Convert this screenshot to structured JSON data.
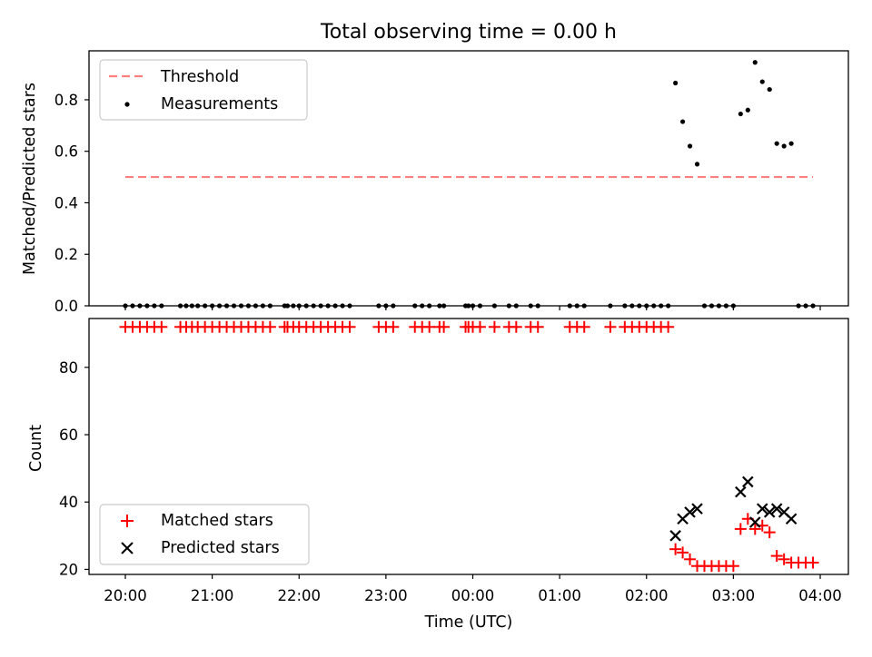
{
  "figure": {
    "title": "Total observing time = 0.00 h"
  },
  "colors": {
    "threshold": "#ff7f7f",
    "measurement": "#000000",
    "matched": "#ff0000",
    "predicted": "#000000"
  },
  "chart_data": [
    {
      "type": "scatter",
      "panel": "top",
      "xlabel": "",
      "ylabel": "Matched/Predicted stars",
      "ylim": [
        0.0,
        0.99
      ],
      "yticks": [
        "0.0",
        "0.2",
        "0.4",
        "0.6",
        "0.8"
      ],
      "threshold": {
        "name": "Threshold",
        "value": 0.5,
        "x_start": "20:00",
        "x_end": "03:55"
      },
      "legend": {
        "placement": "upper-left",
        "entries": [
          "Threshold",
          "Measurements"
        ]
      },
      "series": [
        {
          "name": "Measurements",
          "points": [
            [
              "20:00",
              0
            ],
            [
              "20:05",
              0
            ],
            [
              "20:10",
              0
            ],
            [
              "20:15",
              0
            ],
            [
              "20:20",
              0
            ],
            [
              "20:25",
              0
            ],
            [
              "20:38",
              0
            ],
            [
              "20:42",
              0
            ],
            [
              "20:46",
              0
            ],
            [
              "20:50",
              0
            ],
            [
              "20:55",
              0
            ],
            [
              "21:00",
              0
            ],
            [
              "21:05",
              0
            ],
            [
              "21:10",
              0
            ],
            [
              "21:15",
              0
            ],
            [
              "21:20",
              0
            ],
            [
              "21:25",
              0
            ],
            [
              "21:30",
              0
            ],
            [
              "21:35",
              0
            ],
            [
              "21:40",
              0
            ],
            [
              "21:50",
              0
            ],
            [
              "21:52",
              0
            ],
            [
              "21:56",
              0
            ],
            [
              "22:00",
              0
            ],
            [
              "22:05",
              0
            ],
            [
              "22:10",
              0
            ],
            [
              "22:15",
              0
            ],
            [
              "22:20",
              0
            ],
            [
              "22:25",
              0
            ],
            [
              "22:30",
              0
            ],
            [
              "22:35",
              0
            ],
            [
              "22:55",
              0
            ],
            [
              "23:00",
              0
            ],
            [
              "23:05",
              0
            ],
            [
              "23:20",
              0
            ],
            [
              "23:25",
              0
            ],
            [
              "23:30",
              0
            ],
            [
              "23:37",
              0
            ],
            [
              "23:40",
              0
            ],
            [
              "23:55",
              0
            ],
            [
              "23:57",
              0
            ],
            [
              "00:00",
              0
            ],
            [
              "00:05",
              0
            ],
            [
              "00:15",
              0
            ],
            [
              "00:25",
              0
            ],
            [
              "00:30",
              0
            ],
            [
              "00:40",
              0
            ],
            [
              "00:45",
              0
            ],
            [
              "01:07",
              0
            ],
            [
              "01:12",
              0
            ],
            [
              "01:17",
              0
            ],
            [
              "01:35",
              0
            ],
            [
              "01:45",
              0
            ],
            [
              "01:50",
              0
            ],
            [
              "01:55",
              0
            ],
            [
              "02:00",
              0
            ],
            [
              "02:05",
              0
            ],
            [
              "02:10",
              0
            ],
            [
              "02:15",
              0
            ],
            [
              "02:20",
              0.865
            ],
            [
              "02:25",
              0.715
            ],
            [
              "02:30",
              0.62
            ],
            [
              "02:35",
              0.55
            ],
            [
              "02:40",
              0
            ],
            [
              "02:45",
              0
            ],
            [
              "02:50",
              0
            ],
            [
              "02:55",
              0
            ],
            [
              "03:00",
              0
            ],
            [
              "03:05",
              0.745
            ],
            [
              "03:10",
              0.76
            ],
            [
              "03:15",
              0.945
            ],
            [
              "03:20",
              0.87
            ],
            [
              "03:25",
              0.84
            ],
            [
              "03:30",
              0.63
            ],
            [
              "03:35",
              0.62
            ],
            [
              "03:40",
              0.63
            ],
            [
              "03:45",
              0
            ],
            [
              "03:50",
              0
            ],
            [
              "03:55",
              0
            ]
          ]
        }
      ]
    },
    {
      "type": "scatter",
      "panel": "bottom",
      "xlabel": "Time (UTC)",
      "ylabel": "Count",
      "ylim": [
        18.5,
        94.5
      ],
      "yticks": [
        "20",
        "40",
        "60",
        "80"
      ],
      "xticks": [
        "20:00",
        "21:00",
        "22:00",
        "23:00",
        "00:00",
        "01:00",
        "02:00",
        "03:00",
        "04:00"
      ],
      "legend": {
        "placement": "lower-left",
        "entries": [
          "Matched stars",
          "Predicted stars"
        ]
      },
      "series": [
        {
          "name": "Matched stars",
          "marker": "+",
          "points": [
            [
              "20:00",
              92
            ],
            [
              "20:05",
              92
            ],
            [
              "20:10",
              92
            ],
            [
              "20:15",
              92
            ],
            [
              "20:20",
              92
            ],
            [
              "20:25",
              92
            ],
            [
              "20:38",
              92
            ],
            [
              "20:42",
              92
            ],
            [
              "20:46",
              92
            ],
            [
              "20:50",
              92
            ],
            [
              "20:55",
              92
            ],
            [
              "21:00",
              92
            ],
            [
              "21:05",
              92
            ],
            [
              "21:10",
              92
            ],
            [
              "21:15",
              92
            ],
            [
              "21:20",
              92
            ],
            [
              "21:25",
              92
            ],
            [
              "21:30",
              92
            ],
            [
              "21:35",
              92
            ],
            [
              "21:40",
              92
            ],
            [
              "21:50",
              92
            ],
            [
              "21:52",
              92
            ],
            [
              "21:56",
              92
            ],
            [
              "22:00",
              92
            ],
            [
              "22:05",
              92
            ],
            [
              "22:10",
              92
            ],
            [
              "22:15",
              92
            ],
            [
              "22:20",
              92
            ],
            [
              "22:25",
              92
            ],
            [
              "22:30",
              92
            ],
            [
              "22:35",
              92
            ],
            [
              "22:55",
              92
            ],
            [
              "23:00",
              92
            ],
            [
              "23:05",
              92
            ],
            [
              "23:20",
              92
            ],
            [
              "23:25",
              92
            ],
            [
              "23:30",
              92
            ],
            [
              "23:37",
              92
            ],
            [
              "23:40",
              92
            ],
            [
              "23:55",
              92
            ],
            [
              "23:57",
              92
            ],
            [
              "00:00",
              92
            ],
            [
              "00:05",
              92
            ],
            [
              "00:15",
              92
            ],
            [
              "00:25",
              92
            ],
            [
              "00:30",
              92
            ],
            [
              "00:40",
              92
            ],
            [
              "00:45",
              92
            ],
            [
              "01:07",
              92
            ],
            [
              "01:12",
              92
            ],
            [
              "01:17",
              92
            ],
            [
              "01:35",
              92
            ],
            [
              "01:45",
              92
            ],
            [
              "01:50",
              92
            ],
            [
              "01:55",
              92
            ],
            [
              "02:00",
              92
            ],
            [
              "02:05",
              92
            ],
            [
              "02:10",
              92
            ],
            [
              "02:15",
              92
            ],
            [
              "02:20",
              26
            ],
            [
              "02:25",
              25
            ],
            [
              "02:30",
              23
            ],
            [
              "02:35",
              21
            ],
            [
              "02:40",
              21
            ],
            [
              "02:45",
              21
            ],
            [
              "02:50",
              21
            ],
            [
              "02:55",
              21
            ],
            [
              "03:00",
              21
            ],
            [
              "03:05",
              32
            ],
            [
              "03:10",
              35
            ],
            [
              "03:15",
              32
            ],
            [
              "03:20",
              33
            ],
            [
              "03:25",
              31
            ],
            [
              "03:30",
              24
            ],
            [
              "03:35",
              23
            ],
            [
              "03:40",
              22
            ],
            [
              "03:45",
              22
            ],
            [
              "03:50",
              22
            ],
            [
              "03:55",
              22
            ]
          ]
        },
        {
          "name": "Predicted stars",
          "marker": "x",
          "points": [
            [
              "02:20",
              30
            ],
            [
              "02:25",
              35
            ],
            [
              "02:30",
              37
            ],
            [
              "02:35",
              38
            ],
            [
              "03:05",
              43
            ],
            [
              "03:10",
              46
            ],
            [
              "03:15",
              34
            ],
            [
              "03:20",
              38
            ],
            [
              "03:25",
              37
            ],
            [
              "03:30",
              38
            ],
            [
              "03:35",
              37
            ],
            [
              "03:40",
              35
            ]
          ]
        }
      ]
    }
  ]
}
